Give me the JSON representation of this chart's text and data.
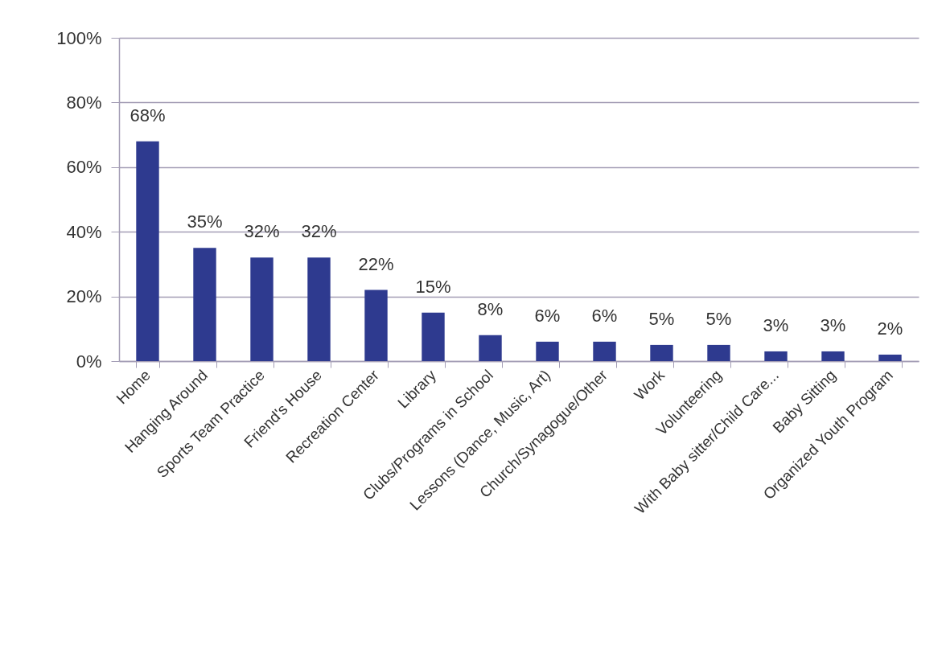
{
  "chart_data": {
    "type": "bar",
    "categories": [
      "Home",
      "Hanging Around",
      "Sports Team Practice",
      "Friend's House",
      "Recreation Center",
      "Library",
      "Clubs/Programs in School",
      "Lessons (Dance, Music, Art)",
      "Church/Synagogue/Other",
      "Work",
      "Volunteering",
      "With Baby sitter/Child Care...",
      "Baby Sitting",
      "Organized Youth Program"
    ],
    "values": [
      68,
      35,
      32,
      32,
      22,
      15,
      8,
      6,
      6,
      5,
      5,
      3,
      3,
      2
    ],
    "value_labels": [
      "68%",
      "35%",
      "32%",
      "32%",
      "22%",
      "15%",
      "8%",
      "6%",
      "6%",
      "5%",
      "5%",
      "3%",
      "3%",
      "2%"
    ],
    "color": "#2e3a8f",
    "ylim": [
      0,
      100
    ],
    "yticks": [
      {
        "value": 0,
        "label": "0%"
      },
      {
        "value": 20,
        "label": "20%"
      },
      {
        "value": 40,
        "label": "40%"
      },
      {
        "value": 60,
        "label": "60%"
      },
      {
        "value": 80,
        "label": "80%"
      },
      {
        "value": 100,
        "label": "100%"
      }
    ],
    "grid": "y"
  }
}
